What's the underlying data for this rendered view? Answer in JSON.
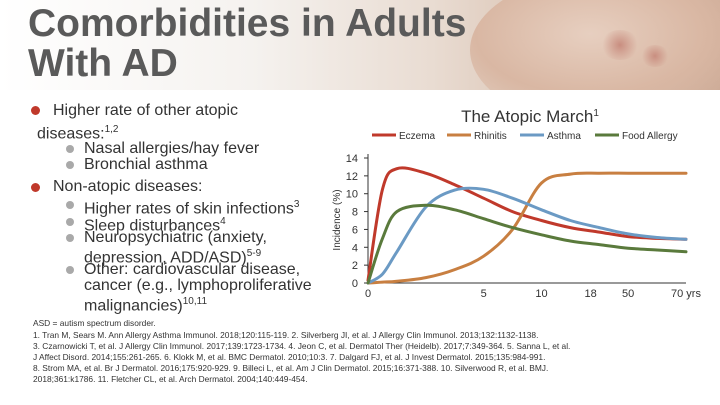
{
  "slide": {
    "title_line1": "Comorbidities in Adults",
    "title_line2": "With AD"
  },
  "bullets": {
    "b1_line1": "Higher rate of other atopic",
    "b1_line2": "diseases:",
    "b1_sup": "1,2",
    "b1_sub1": "Nasal allergies/hay fever",
    "b1_sub2": "Bronchial asthma",
    "b2": "Non-atopic diseases:",
    "b2_sub1": "Higher rates of skin infections",
    "b2_sub1_sup": "3",
    "b2_sub2": "Sleep disturbances",
    "b2_sub2_sup": "4",
    "b2_sub3_line1": "Neuropsychiatric (anxiety,",
    "b2_sub3_line2": "depression, ADD/ASD)",
    "b2_sub3_sup": "5-9",
    "b2_sub4_line1": "Other: cardiovascular disease,",
    "b2_sub4_line2": "cancer (e.g., lymphoproliferative",
    "b2_sub4_line3": "malignancies)",
    "b2_sub4_sup": "10,11"
  },
  "chart_data": {
    "type": "line",
    "title": "The Atopic March",
    "title_sup": "1",
    "ylabel": "Incidence (%)",
    "ylim": [
      0,
      14
    ],
    "yticks": [
      "0",
      "2",
      "4",
      "6",
      "8",
      "10",
      "12",
      "14"
    ],
    "x": [
      0,
      0.5,
      1,
      2,
      3,
      4,
      5,
      6,
      7,
      8,
      9,
      10,
      11
    ],
    "xticks": [
      {
        "label": "0",
        "x": 0
      },
      {
        "label": "5",
        "x": 4
      },
      {
        "label": "10",
        "x": 6
      },
      {
        "label": "18",
        "x": 7.7
      },
      {
        "label": "50",
        "x": 9
      },
      {
        "label": "70 yrs",
        "x": 11
      }
    ],
    "legend_position": "top",
    "series": [
      {
        "name": "Eczema",
        "color": "#c0392b",
        "values": [
          0.3,
          10.5,
          12.8,
          12.3,
          11,
          9.5,
          8,
          7,
          6.2,
          5.7,
          5.2,
          5,
          4.9
        ]
      },
      {
        "name": "Rhinitis",
        "color": "#c87f41",
        "values": [
          0,
          0.1,
          0.2,
          0.6,
          1.5,
          3,
          6,
          11.2,
          12.2,
          12.3,
          12.3,
          12.3,
          12.3
        ]
      },
      {
        "name": "Asthma",
        "color": "#6b9ac4",
        "values": [
          0,
          1,
          3.5,
          8.5,
          10.4,
          10.5,
          9.5,
          8.2,
          7,
          6.2,
          5.5,
          5.1,
          4.9
        ]
      },
      {
        "name": "Food Allergy",
        "color": "#5a7a3c",
        "values": [
          0,
          5,
          8,
          8.7,
          8.2,
          7.2,
          6.2,
          5.4,
          4.7,
          4.3,
          3.9,
          3.7,
          3.5
        ]
      }
    ]
  },
  "footnotes": {
    "abbrev": "ASD = autism spectrum disorder.",
    "line1": "1. Tran M, Sears M. Ann Allergy Asthma Immunol. 2018;120:115-119. 2. Silverberg JI, et al. J Allergy Clin Immunol. 2013;132:1132-1138.",
    "line2": "3. Czarnowicki T, et al. J Allergy Clin Immunol. 2017;139:1723-1734. 4. Jeon C, et al. Dermatol Ther (Heidelb). 2017;7:349-364. 5. Sanna L, et al.",
    "line3": "J Affect Disord. 2014;155:261-265. 6. Klokk M, et al. BMC Dermatol. 2010;10:3. 7. Dalgard FJ, et al. J Invest Dermatol. 2015;135:984-991.",
    "line4": "8. Strom MA, et al. Br J Dermatol. 2016;175:920-929. 9. Billeci L, et al. Am J Clin Dermatol. 2015;16:371-388. 10. Silverwood R, et al. BMJ.",
    "line5": "2018;361:k1786. 11. Fletcher CL, et al. Arch Dermatol. 2004;140:449-454."
  }
}
